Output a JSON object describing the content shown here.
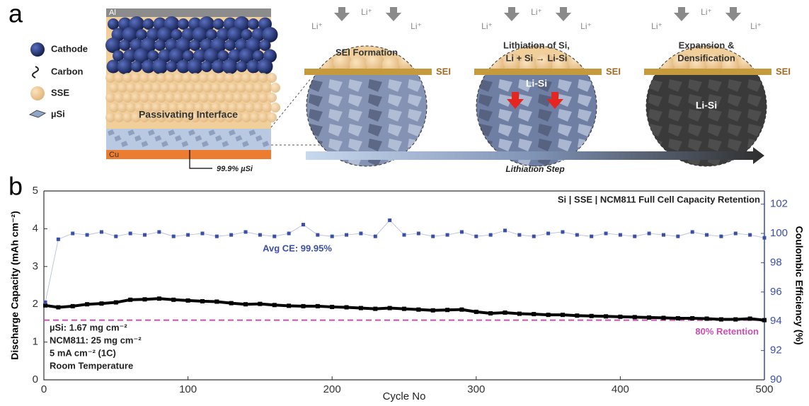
{
  "panel_a": {
    "label": "a",
    "legend": [
      "Cathode",
      "Carbon",
      "SSE",
      "µSi"
    ],
    "layers": [
      "Al",
      "Cu"
    ],
    "interface_label": "Passivating Interface",
    "si_note": "99.9% µSi",
    "stages": [
      {
        "title": [
          "SEI Formation"
        ],
        "sei": "SEI",
        "ions": [
          "Li⁺",
          "Li⁺",
          "Li⁺"
        ]
      },
      {
        "title": [
          "Lithiation of Si,",
          "Li + Si → Li-Si"
        ],
        "sei": "SEI",
        "core": "Li-Si",
        "ions": [
          "Li⁺",
          "Li⁺",
          "Li⁺"
        ]
      },
      {
        "title": [
          "Expansion &",
          "Densification"
        ],
        "sei": "SEI",
        "core": "Li-Si",
        "ions": [
          "Li⁺",
          "Li⁺",
          "Li⁺"
        ]
      }
    ],
    "arrow_label": "Lithiation Step"
  },
  "chart_data": {
    "type": "line",
    "panel_label": "b",
    "title": "Si | SSE | NCM811 Full Cell Capacity Retention",
    "x_label": "Cycle No",
    "y_label": "Discharge Capacity (mAh cm⁻²)",
    "y2_label": "Coulombic Efficiency (%)",
    "x": [
      1,
      10,
      20,
      30,
      40,
      50,
      60,
      70,
      80,
      90,
      100,
      110,
      120,
      130,
      140,
      150,
      160,
      170,
      180,
      190,
      200,
      210,
      220,
      230,
      240,
      250,
      260,
      270,
      280,
      290,
      300,
      310,
      320,
      330,
      340,
      350,
      360,
      370,
      380,
      390,
      400,
      410,
      420,
      430,
      440,
      450,
      460,
      470,
      480,
      490,
      500
    ],
    "series": [
      {
        "name": "Discharge Capacity",
        "color": "#000000",
        "axis": "y",
        "values": [
          1.97,
          1.92,
          1.95,
          2.0,
          2.02,
          2.05,
          2.12,
          2.13,
          2.15,
          2.12,
          2.1,
          2.08,
          2.07,
          2.03,
          2.0,
          2.01,
          1.98,
          1.96,
          1.95,
          1.95,
          1.93,
          1.92,
          1.9,
          1.88,
          1.9,
          1.88,
          1.86,
          1.84,
          1.85,
          1.86,
          1.8,
          1.76,
          1.78,
          1.75,
          1.74,
          1.72,
          1.72,
          1.7,
          1.69,
          1.68,
          1.67,
          1.66,
          1.65,
          1.64,
          1.63,
          1.63,
          1.62,
          1.6,
          1.6,
          1.62,
          1.58
        ]
      },
      {
        "name": "Coulombic Efficiency",
        "color": "#3a4fa8",
        "axis": "y2",
        "values": [
          95.3,
          99.6,
          100.0,
          99.9,
          100.1,
          99.8,
          100.0,
          99.9,
          100.1,
          99.8,
          99.9,
          100.0,
          99.8,
          99.9,
          100.1,
          99.9,
          99.8,
          100.0,
          100.6,
          99.9,
          99.8,
          99.9,
          100.0,
          99.8,
          100.9,
          99.9,
          100.0,
          99.8,
          99.9,
          100.1,
          99.8,
          99.9,
          100.2,
          99.9,
          99.8,
          100.0,
          100.1,
          99.9,
          99.8,
          100.0,
          99.9,
          99.8,
          100.0,
          99.9,
          99.8,
          100.1,
          99.9,
          99.8,
          100.0,
          99.9,
          99.7
        ]
      }
    ],
    "xlim": [
      0,
      500
    ],
    "xticks": [
      0,
      100,
      200,
      300,
      400,
      500
    ],
    "ylim": [
      0,
      5
    ],
    "yticks": [
      0,
      1,
      2,
      3,
      4,
      5
    ],
    "y2lim": [
      90,
      102.9
    ],
    "y2ticks": [
      90,
      92,
      94,
      96,
      98,
      100,
      102
    ],
    "retention_line": {
      "value": 1.58,
      "label": "80% Retention",
      "color": "#c94fb0"
    },
    "ce_annotation": "Avg CE: 99.95%",
    "conditions": [
      "µSi: 1.67 mg cm⁻²",
      "NCM811: 25 mg cm⁻²",
      "5 mA cm⁻² (1C)",
      "Room Temperature"
    ]
  }
}
